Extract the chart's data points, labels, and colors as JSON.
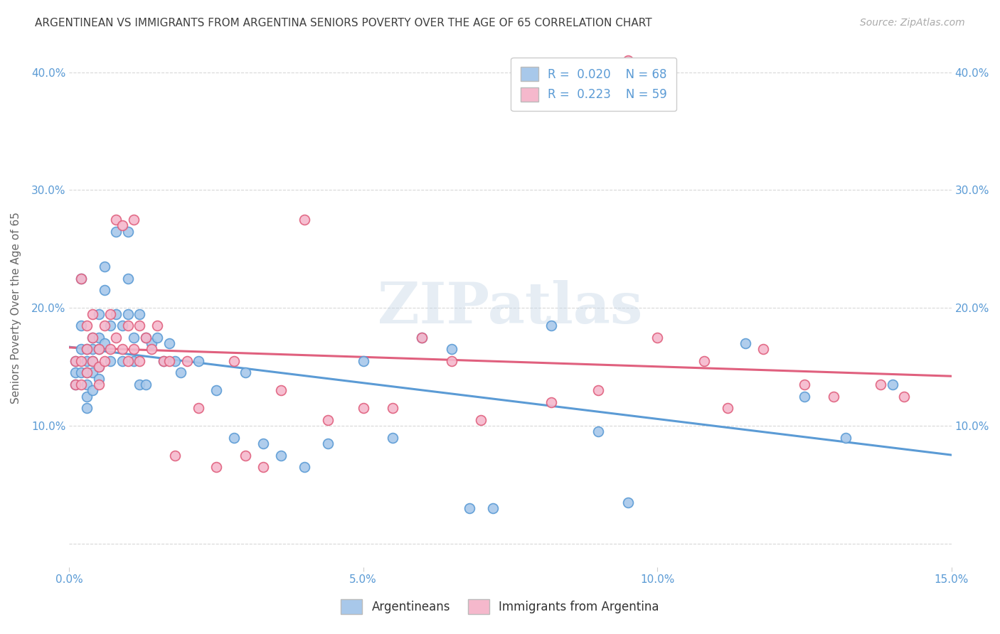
{
  "title": "ARGENTINEAN VS IMMIGRANTS FROM ARGENTINA SENIORS POVERTY OVER THE AGE OF 65 CORRELATION CHART",
  "source": "Source: ZipAtlas.com",
  "ylabel": "Seniors Poverty Over the Age of 65",
  "xlim": [
    0.0,
    0.15
  ],
  "ylim": [
    -0.02,
    0.42
  ],
  "xticks": [
    0.0,
    0.05,
    0.1,
    0.15
  ],
  "xtick_labels": [
    "0.0%",
    "5.0%",
    "10.0%",
    "15.0%"
  ],
  "yticks": [
    0.0,
    0.1,
    0.2,
    0.3,
    0.4
  ],
  "ytick_labels": [
    "",
    "10.0%",
    "20.0%",
    "30.0%",
    "40.0%"
  ],
  "series1_color": "#a8c8ea",
  "series2_color": "#f5b8cc",
  "line1_color": "#5b9bd5",
  "line2_color": "#e0607e",
  "R1": 0.02,
  "N1": 68,
  "R2": 0.223,
  "N2": 59,
  "legend1": "Argentineans",
  "legend2": "Immigrants from Argentina",
  "watermark": "ZIPatlas",
  "background_color": "#ffffff",
  "grid_color": "#d8d8d8",
  "title_color": "#404040",
  "axis_label_color": "#5b9bd5",
  "tick_label_color": "#5b9bd5",
  "scatter1_x": [
    0.001,
    0.001,
    0.001,
    0.002,
    0.002,
    0.002,
    0.002,
    0.003,
    0.003,
    0.003,
    0.003,
    0.003,
    0.003,
    0.004,
    0.004,
    0.004,
    0.004,
    0.004,
    0.005,
    0.005,
    0.005,
    0.005,
    0.005,
    0.006,
    0.006,
    0.006,
    0.007,
    0.007,
    0.008,
    0.008,
    0.009,
    0.009,
    0.01,
    0.01,
    0.01,
    0.011,
    0.011,
    0.012,
    0.012,
    0.013,
    0.013,
    0.014,
    0.015,
    0.016,
    0.017,
    0.018,
    0.019,
    0.022,
    0.025,
    0.028,
    0.03,
    0.033,
    0.036,
    0.04,
    0.044,
    0.05,
    0.055,
    0.06,
    0.065,
    0.068,
    0.072,
    0.082,
    0.09,
    0.095,
    0.115,
    0.125,
    0.132,
    0.14
  ],
  "scatter1_y": [
    0.155,
    0.145,
    0.135,
    0.225,
    0.185,
    0.165,
    0.145,
    0.165,
    0.155,
    0.145,
    0.135,
    0.125,
    0.115,
    0.175,
    0.165,
    0.155,
    0.145,
    0.13,
    0.195,
    0.175,
    0.165,
    0.15,
    0.14,
    0.235,
    0.215,
    0.17,
    0.185,
    0.155,
    0.265,
    0.195,
    0.185,
    0.155,
    0.265,
    0.225,
    0.195,
    0.175,
    0.155,
    0.195,
    0.135,
    0.175,
    0.135,
    0.17,
    0.175,
    0.155,
    0.17,
    0.155,
    0.145,
    0.155,
    0.13,
    0.09,
    0.145,
    0.085,
    0.075,
    0.065,
    0.085,
    0.155,
    0.09,
    0.175,
    0.165,
    0.03,
    0.03,
    0.185,
    0.095,
    0.035,
    0.17,
    0.125,
    0.09,
    0.135
  ],
  "scatter2_x": [
    0.001,
    0.001,
    0.002,
    0.002,
    0.002,
    0.003,
    0.003,
    0.003,
    0.004,
    0.004,
    0.004,
    0.005,
    0.005,
    0.005,
    0.006,
    0.006,
    0.007,
    0.007,
    0.008,
    0.008,
    0.009,
    0.009,
    0.01,
    0.01,
    0.011,
    0.011,
    0.012,
    0.012,
    0.013,
    0.014,
    0.015,
    0.016,
    0.017,
    0.018,
    0.02,
    0.022,
    0.025,
    0.028,
    0.03,
    0.033,
    0.036,
    0.04,
    0.044,
    0.05,
    0.055,
    0.06,
    0.065,
    0.07,
    0.082,
    0.09,
    0.095,
    0.1,
    0.108,
    0.112,
    0.118,
    0.125,
    0.13,
    0.138,
    0.142
  ],
  "scatter2_y": [
    0.155,
    0.135,
    0.225,
    0.155,
    0.135,
    0.185,
    0.165,
    0.145,
    0.195,
    0.175,
    0.155,
    0.165,
    0.15,
    0.135,
    0.185,
    0.155,
    0.195,
    0.165,
    0.275,
    0.175,
    0.27,
    0.165,
    0.185,
    0.155,
    0.275,
    0.165,
    0.185,
    0.155,
    0.175,
    0.165,
    0.185,
    0.155,
    0.155,
    0.075,
    0.155,
    0.115,
    0.065,
    0.155,
    0.075,
    0.065,
    0.13,
    0.275,
    0.105,
    0.115,
    0.115,
    0.175,
    0.155,
    0.105,
    0.12,
    0.13,
    0.41,
    0.175,
    0.155,
    0.115,
    0.165,
    0.135,
    0.125,
    0.135,
    0.125
  ]
}
